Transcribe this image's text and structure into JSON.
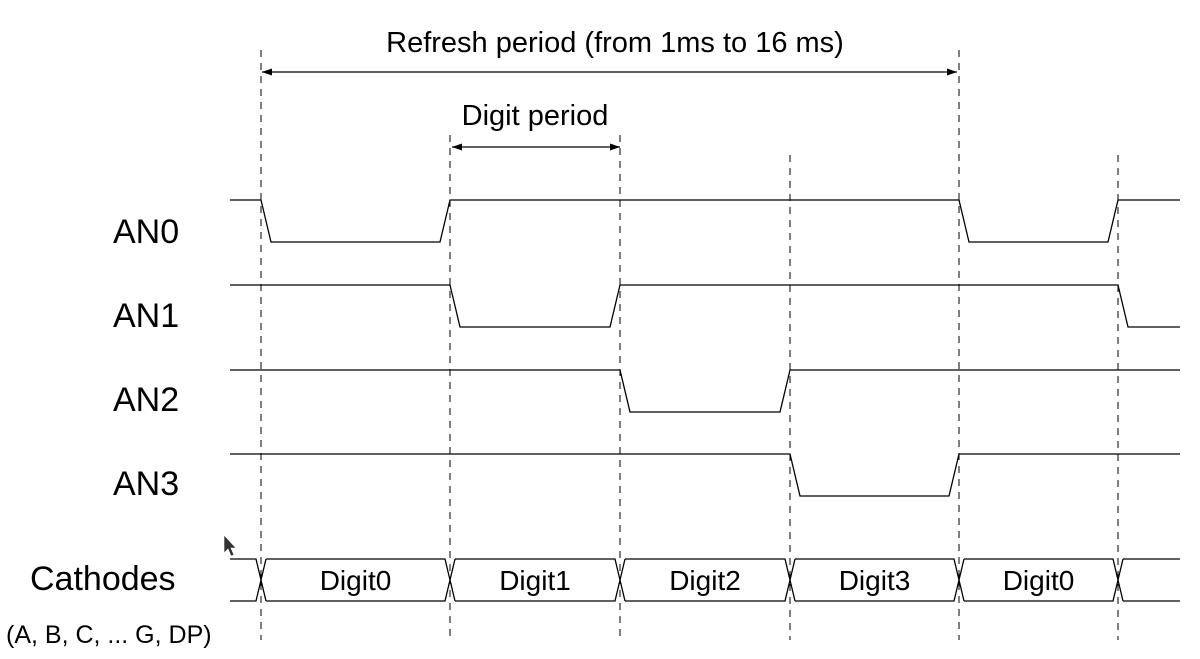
{
  "diagram": {
    "refresh_label": "Refresh period (from 1ms to 16 ms)",
    "digit_label": "Digit period",
    "signals": [
      {
        "name": "AN0",
        "active_slot": 0
      },
      {
        "name": "AN1",
        "active_slot": 1
      },
      {
        "name": "AN2",
        "active_slot": 2
      },
      {
        "name": "AN3",
        "active_slot": 3
      }
    ],
    "cathodes": {
      "label": "Cathodes",
      "sublabel": "(A, B, C, ... G, DP)",
      "digits": [
        "Digit0",
        "Digit1",
        "Digit2",
        "Digit3",
        "Digit0"
      ]
    }
  }
}
